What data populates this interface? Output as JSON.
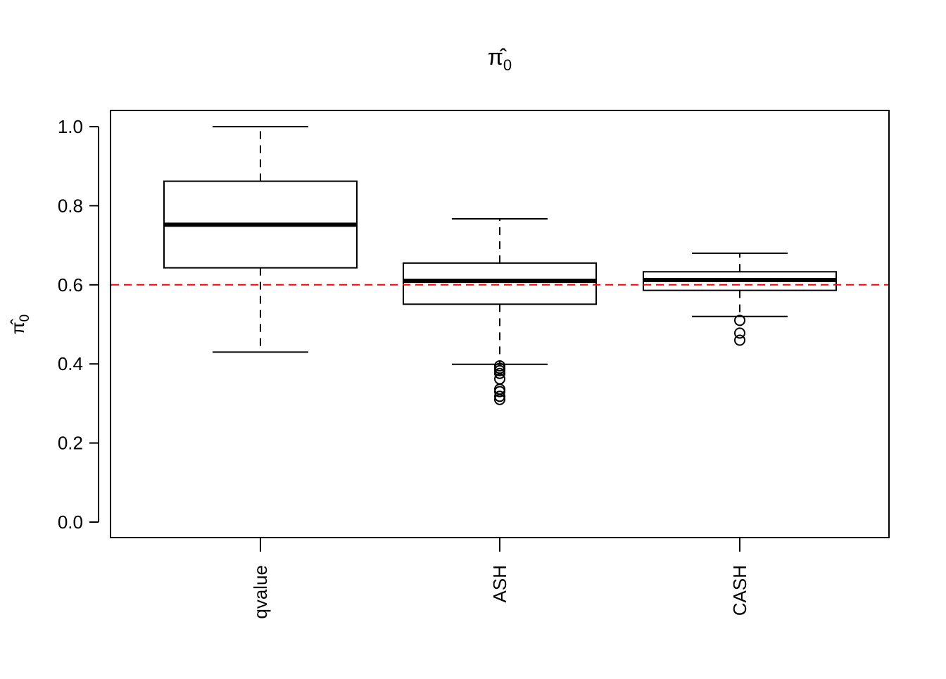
{
  "chart_data": {
    "type": "box",
    "title": "π̂0",
    "ylabel": "π̂0",
    "xlabel": "",
    "ylim": [
      -0.04,
      1.04
    ],
    "yticks": [
      "0.0",
      "0.2",
      "0.4",
      "0.6",
      "0.8",
      "1.0"
    ],
    "categories": [
      "qvalue",
      "ASH",
      "CASH"
    ],
    "boxes": [
      {
        "category": "qvalue",
        "whisker_low": 0.43,
        "q1": 0.643,
        "median": 0.752,
        "q3": 0.862,
        "whisker_high": 1.0,
        "outliers": []
      },
      {
        "category": "ASH",
        "whisker_low": 0.399,
        "q1": 0.551,
        "median": 0.61,
        "q3": 0.655,
        "whisker_high": 0.767,
        "outliers": [
          0.31,
          0.318,
          0.33,
          0.336,
          0.362,
          0.376,
          0.383,
          0.389,
          0.395
        ]
      },
      {
        "category": "CASH",
        "whisker_low": 0.52,
        "q1": 0.586,
        "median": 0.612,
        "q3": 0.633,
        "whisker_high": 0.68,
        "outliers": [
          0.46,
          0.478,
          0.51
        ]
      }
    ],
    "reference_line": {
      "y": 0.6,
      "color": "#ff0000",
      "style": "dashed"
    },
    "grid": false,
    "legend": "none"
  }
}
